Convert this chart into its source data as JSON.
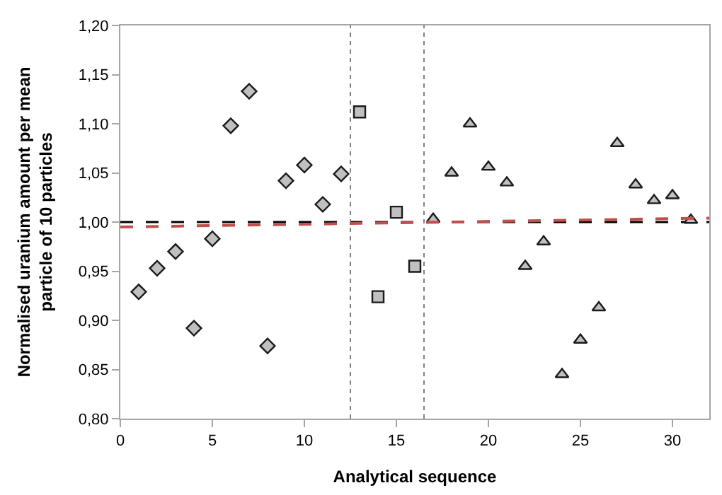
{
  "chart_data": {
    "type": "scatter",
    "xlabel": "Analytical sequence",
    "ylabel": "Normalised uranium amount per mean particle of 10 particles",
    "xlim": [
      0,
      32
    ],
    "xticks": [
      0,
      5,
      10,
      15,
      20,
      25,
      30
    ],
    "ylim": [
      0.8,
      1.2
    ],
    "yticks": [
      {
        "value": 0.8,
        "label": "0,80"
      },
      {
        "value": 0.85,
        "label": "0,85"
      },
      {
        "value": 0.9,
        "label": "0,90"
      },
      {
        "value": 0.95,
        "label": "0,95"
      },
      {
        "value": 1.0,
        "label": "1,00"
      },
      {
        "value": 1.05,
        "label": "1,05"
      },
      {
        "value": 1.1,
        "label": "1,10"
      },
      {
        "value": 1.15,
        "label": "1,15"
      },
      {
        "value": 1.2,
        "label": "1,20"
      }
    ],
    "grid": false,
    "series": [
      {
        "color": "#c0c0c0",
        "marker": "diamond",
        "x": [
          1,
          2,
          3,
          4,
          5,
          6,
          7,
          8,
          9,
          10,
          11,
          12
        ],
        "values": [
          0.929,
          0.953,
          0.97,
          0.892,
          0.983,
          1.098,
          1.133,
          0.874,
          1.042,
          1.058,
          1.018,
          1.049
        ]
      },
      {
        "color": "#c0c0c0",
        "marker": "square",
        "x": [
          13,
          14,
          15,
          16
        ],
        "values": [
          1.112,
          0.924,
          1.01,
          0.955
        ]
      },
      {
        "color": "#c0c0c0",
        "marker": "triangle",
        "x": [
          17,
          18,
          19,
          20,
          21,
          22,
          23,
          24,
          25,
          26,
          27,
          28,
          29,
          30,
          31
        ],
        "values": [
          1.003,
          1.05,
          1.1,
          1.056,
          1.04,
          0.955,
          0.98,
          0.845,
          0.88,
          0.913,
          1.08,
          1.038,
          1.022,
          1.027,
          1.002
        ]
      },
      {
        "type": "line",
        "color": "#c0504d",
        "line_style": "dashed",
        "x": [
          0,
          32
        ],
        "values": [
          0.995,
          1.004
        ]
      }
    ],
    "ref_lines": [
      {
        "axis": "y",
        "value": 1.0,
        "color": "#000000",
        "line_style": "dashed"
      },
      {
        "axis": "x",
        "value": 12.5,
        "color": "#808080",
        "line_style": "dotted"
      },
      {
        "axis": "x",
        "value": 16.5,
        "color": "#808080",
        "line_style": "dotted"
      }
    ]
  }
}
